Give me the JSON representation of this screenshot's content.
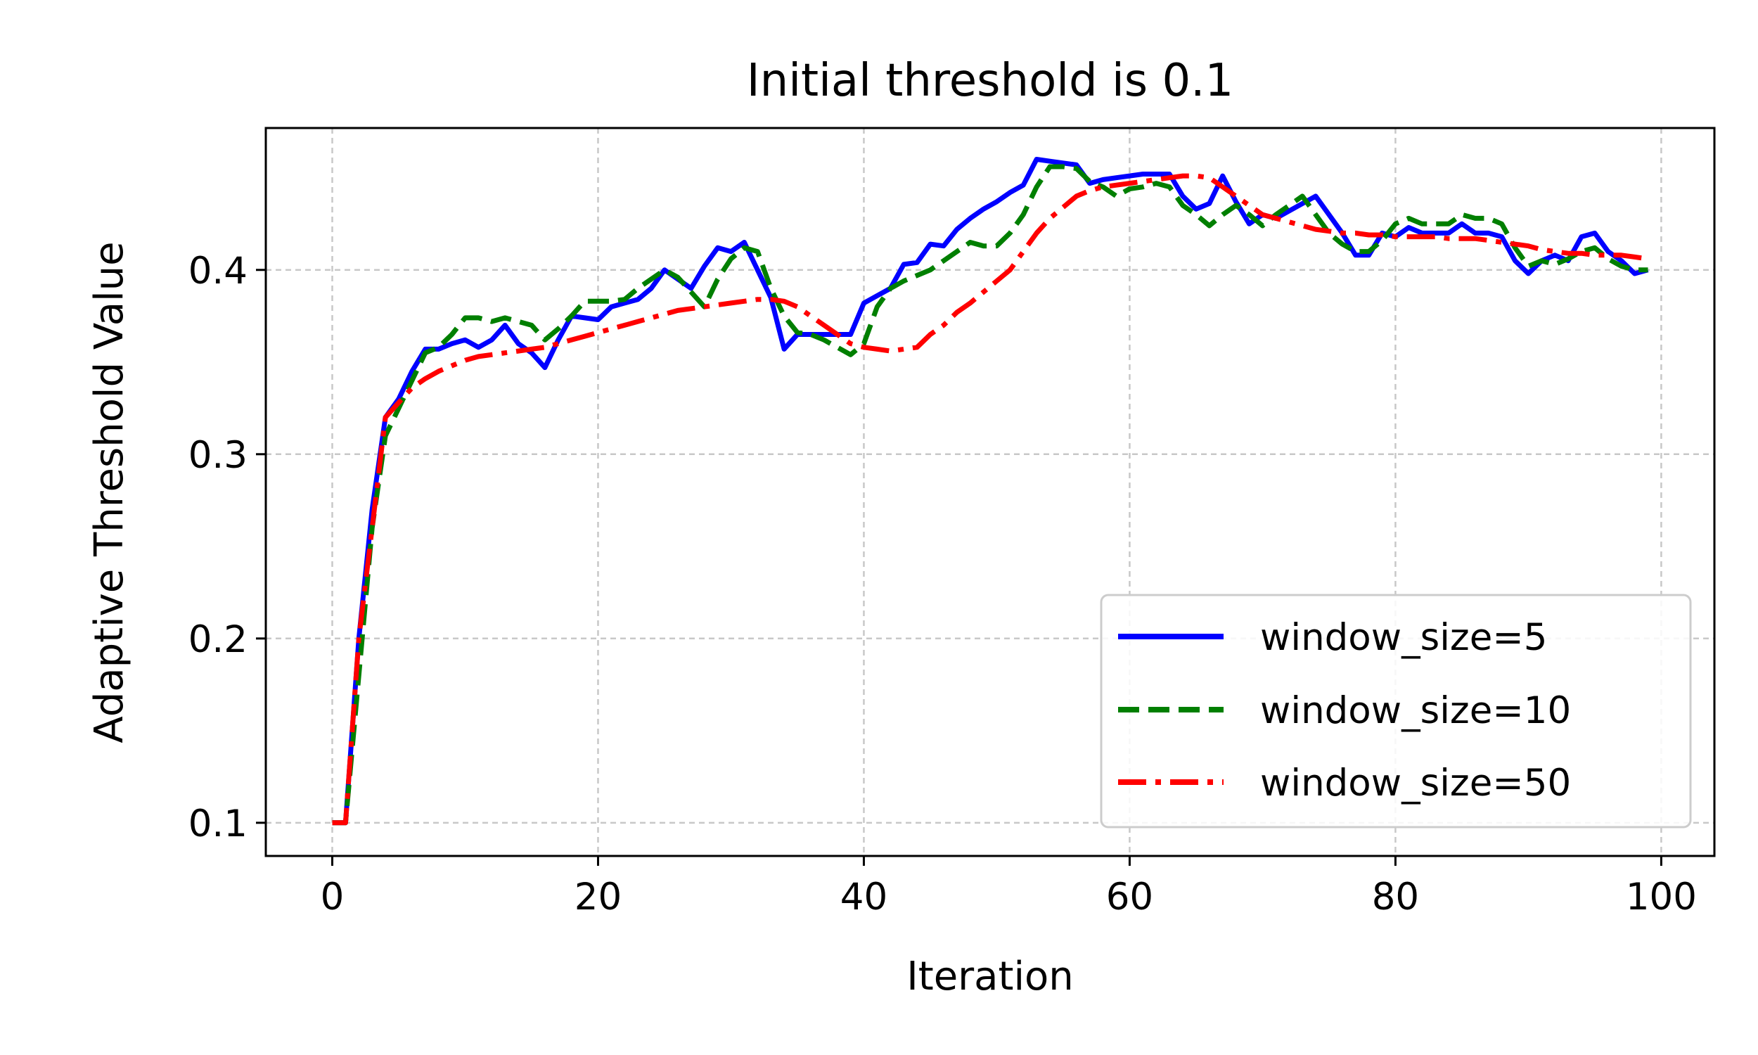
{
  "chart_data": {
    "type": "line",
    "title": "Initial threshold is 0.1",
    "xlabel": "Iteration",
    "ylabel": "Adaptive Threshold Value",
    "xlim": [
      -5,
      104
    ],
    "ylim": [
      0.082,
      0.477
    ],
    "xticks": [
      0,
      20,
      40,
      60,
      80,
      100
    ],
    "xtick_labels": [
      "0",
      "20",
      "40",
      "60",
      "80",
      "100"
    ],
    "yticks": [
      0.1,
      0.2,
      0.3,
      0.4
    ],
    "ytick_labels": [
      "0.1",
      "0.2",
      "0.3",
      "0.4"
    ],
    "grid": true,
    "legend_position": "lower-right",
    "series": [
      {
        "name": "window_size=5",
        "color": "#0000ff",
        "style": "solid",
        "x": [
          0,
          1,
          2,
          3,
          4,
          5,
          6,
          7,
          8,
          9,
          10,
          11,
          12,
          13,
          14,
          15,
          16,
          17,
          18,
          19,
          20,
          21,
          22,
          23,
          24,
          25,
          26,
          27,
          28,
          29,
          30,
          31,
          32,
          33,
          34,
          35,
          36,
          37,
          38,
          39,
          40,
          41,
          42,
          43,
          44,
          45,
          46,
          47,
          48,
          49,
          50,
          51,
          52,
          53,
          54,
          55,
          56,
          57,
          58,
          59,
          60,
          61,
          62,
          63,
          64,
          65,
          66,
          67,
          68,
          69,
          70,
          71,
          72,
          73,
          74,
          75,
          76,
          77,
          78,
          79,
          80,
          81,
          82,
          83,
          84,
          85,
          86,
          87,
          88,
          89,
          90,
          91,
          92,
          93,
          94,
          95,
          96,
          97,
          98,
          99
        ],
        "y": [
          0.1,
          0.1,
          0.2,
          0.27,
          0.32,
          0.33,
          0.345,
          0.357,
          0.357,
          0.36,
          0.362,
          0.358,
          0.362,
          0.37,
          0.36,
          0.355,
          0.347,
          0.362,
          0.375,
          0.374,
          0.373,
          0.38,
          0.382,
          0.384,
          0.39,
          0.4,
          0.395,
          0.39,
          0.402,
          0.412,
          0.41,
          0.415,
          0.4,
          0.385,
          0.357,
          0.365,
          0.365,
          0.365,
          0.365,
          0.365,
          0.382,
          0.386,
          0.39,
          0.403,
          0.404,
          0.414,
          0.413,
          0.422,
          0.428,
          0.433,
          0.437,
          0.442,
          0.446,
          0.46,
          0.459,
          0.458,
          0.457,
          0.447,
          0.449,
          0.45,
          0.451,
          0.452,
          0.452,
          0.452,
          0.44,
          0.433,
          0.436,
          0.451,
          0.437,
          0.425,
          0.43,
          0.428,
          0.432,
          0.436,
          0.44,
          0.43,
          0.42,
          0.408,
          0.408,
          0.42,
          0.418,
          0.423,
          0.42,
          0.42,
          0.42,
          0.425,
          0.42,
          0.42,
          0.418,
          0.405,
          0.398,
          0.405,
          0.408,
          0.405,
          0.418,
          0.42,
          0.41,
          0.405,
          0.398,
          0.4
        ]
      },
      {
        "name": "window_size=10",
        "color": "#007f00",
        "style": "dashed",
        "x": [
          0,
          1,
          2,
          3,
          4,
          5,
          6,
          7,
          8,
          9,
          10,
          11,
          12,
          13,
          14,
          15,
          16,
          17,
          18,
          19,
          20,
          21,
          22,
          23,
          24,
          25,
          26,
          27,
          28,
          29,
          30,
          31,
          32,
          33,
          34,
          35,
          36,
          37,
          38,
          39,
          40,
          41,
          42,
          43,
          44,
          45,
          46,
          47,
          48,
          49,
          50,
          51,
          52,
          53,
          54,
          55,
          56,
          57,
          58,
          59,
          60,
          61,
          62,
          63,
          64,
          65,
          66,
          67,
          68,
          69,
          70,
          71,
          72,
          73,
          74,
          75,
          76,
          77,
          78,
          79,
          80,
          81,
          82,
          83,
          84,
          85,
          86,
          87,
          88,
          89,
          90,
          91,
          92,
          93,
          94,
          95,
          96,
          97,
          98,
          99
        ],
        "y": [
          0.1,
          0.1,
          0.18,
          0.26,
          0.31,
          0.325,
          0.34,
          0.355,
          0.358,
          0.365,
          0.374,
          0.374,
          0.372,
          0.374,
          0.372,
          0.37,
          0.362,
          0.368,
          0.375,
          0.383,
          0.383,
          0.383,
          0.384,
          0.39,
          0.395,
          0.4,
          0.396,
          0.388,
          0.38,
          0.395,
          0.406,
          0.412,
          0.41,
          0.39,
          0.375,
          0.366,
          0.365,
          0.362,
          0.358,
          0.354,
          0.36,
          0.38,
          0.39,
          0.394,
          0.397,
          0.4,
          0.405,
          0.41,
          0.415,
          0.413,
          0.413,
          0.42,
          0.43,
          0.445,
          0.456,
          0.456,
          0.455,
          0.448,
          0.445,
          0.44,
          0.444,
          0.445,
          0.447,
          0.445,
          0.435,
          0.43,
          0.424,
          0.43,
          0.435,
          0.43,
          0.424,
          0.43,
          0.435,
          0.44,
          0.43,
          0.42,
          0.414,
          0.41,
          0.41,
          0.416,
          0.425,
          0.428,
          0.425,
          0.425,
          0.425,
          0.43,
          0.428,
          0.428,
          0.425,
          0.412,
          0.402,
          0.405,
          0.403,
          0.406,
          0.41,
          0.412,
          0.406,
          0.402,
          0.4,
          0.4
        ]
      },
      {
        "name": "window_size=50",
        "color": "#ff0000",
        "style": "dashdot",
        "x": [
          0,
          1,
          2,
          3,
          4,
          5,
          6,
          7,
          8,
          9,
          10,
          11,
          12,
          13,
          14,
          15,
          16,
          17,
          18,
          19,
          20,
          21,
          22,
          23,
          24,
          25,
          26,
          27,
          28,
          29,
          30,
          31,
          32,
          33,
          34,
          35,
          36,
          37,
          38,
          39,
          40,
          41,
          42,
          43,
          44,
          45,
          46,
          47,
          48,
          49,
          50,
          51,
          52,
          53,
          54,
          55,
          56,
          57,
          58,
          59,
          60,
          61,
          62,
          63,
          64,
          65,
          66,
          67,
          68,
          69,
          70,
          71,
          72,
          73,
          74,
          75,
          76,
          77,
          78,
          79,
          80,
          81,
          82,
          83,
          84,
          85,
          86,
          87,
          88,
          89,
          90,
          91,
          92,
          93,
          94,
          95,
          96,
          97,
          98,
          99
        ],
        "y": [
          0.1,
          0.1,
          0.2,
          0.26,
          0.32,
          0.328,
          0.336,
          0.341,
          0.345,
          0.348,
          0.351,
          0.353,
          0.354,
          0.355,
          0.356,
          0.357,
          0.358,
          0.36,
          0.362,
          0.364,
          0.366,
          0.368,
          0.37,
          0.372,
          0.374,
          0.376,
          0.378,
          0.379,
          0.38,
          0.381,
          0.382,
          0.383,
          0.384,
          0.384,
          0.383,
          0.38,
          0.375,
          0.37,
          0.365,
          0.36,
          0.358,
          0.357,
          0.356,
          0.357,
          0.358,
          0.365,
          0.37,
          0.377,
          0.382,
          0.388,
          0.394,
          0.4,
          0.41,
          0.42,
          0.428,
          0.434,
          0.44,
          0.443,
          0.445,
          0.446,
          0.447,
          0.448,
          0.449,
          0.45,
          0.451,
          0.451,
          0.45,
          0.445,
          0.44,
          0.435,
          0.43,
          0.428,
          0.426,
          0.424,
          0.422,
          0.421,
          0.42,
          0.42,
          0.419,
          0.419,
          0.418,
          0.418,
          0.418,
          0.418,
          0.417,
          0.417,
          0.417,
          0.416,
          0.415,
          0.414,
          0.413,
          0.411,
          0.41,
          0.409,
          0.409,
          0.408,
          0.408,
          0.408,
          0.407,
          0.406
        ]
      }
    ]
  }
}
